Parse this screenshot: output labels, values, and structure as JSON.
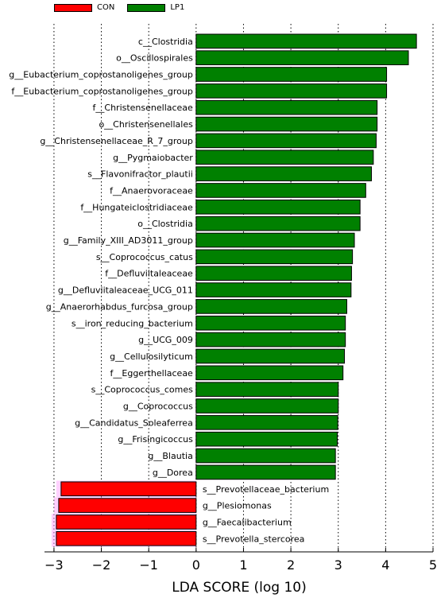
{
  "legend": {
    "items": [
      {
        "label": "CON",
        "color": "#ff0000"
      },
      {
        "label": "LP1",
        "color": "#008000"
      }
    ]
  },
  "chart_data": {
    "type": "bar",
    "orientation": "horizontal",
    "xlabel": "LDA SCORE (log 10)",
    "xlim": [
      -3.2,
      5
    ],
    "xticks": [
      "−3",
      "−2",
      "−1",
      "0",
      "1",
      "2",
      "3",
      "4",
      "5"
    ],
    "xtick_values": [
      -3,
      -2,
      -1,
      0,
      1,
      2,
      3,
      4,
      5
    ],
    "grid": "vertical dotted",
    "legend_position": "top-left",
    "series": [
      {
        "name": "LP1",
        "color": "#008000",
        "categories": [
          "c__Clostridia",
          "o__Oscillospirales",
          "g__Eubacterium_coprostanoligenes_group",
          "f__Eubacterium_coprostanoligenes_group",
          "f__Christensenellaceae",
          "o__Christensenellales",
          "g__Christensenellaceae_R_7_group",
          "g__Pygmaiobacter",
          "s__Flavonifractor_plautii",
          "f__Anaerovoraceae",
          "f__Hungateiclostridiaceae",
          "o__Clostridia",
          "g__Family_XIII_AD3011_group",
          "s__Coprococcus_catus",
          "f__Defluviitaleaceae",
          "g__Defluviitaleaceae_UCG_011",
          "g__Anaerorhabdus_furcosa_group",
          "s__iron_reducing_bacterium",
          "g__UCG_009",
          "g__Cellulosilyticum",
          "f__Eggerthellaceae",
          "s__Coprococcus_comes",
          "g__Coprococcus",
          "g__Candidatus_Soleaferrea",
          "g__Frisingicoccus",
          "g__Blautia",
          "g__Dorea"
        ],
        "values": [
          4.65,
          4.48,
          4.02,
          4.02,
          3.82,
          3.82,
          3.8,
          3.74,
          3.7,
          3.58,
          3.46,
          3.46,
          3.34,
          3.3,
          3.28,
          3.27,
          3.18,
          3.15,
          3.15,
          3.13,
          3.1,
          3.0,
          3.0,
          2.99,
          2.98,
          2.94,
          2.94
        ]
      },
      {
        "name": "CON",
        "color": "#ff0000",
        "categories": [
          "s__Prevotellaceae_bacterium",
          "g__Plesiomonas",
          "g__Faecalibacterium",
          "s__Prevotella_stercorea"
        ],
        "values": [
          -2.85,
          -2.9,
          -2.95,
          -2.95
        ]
      }
    ]
  }
}
